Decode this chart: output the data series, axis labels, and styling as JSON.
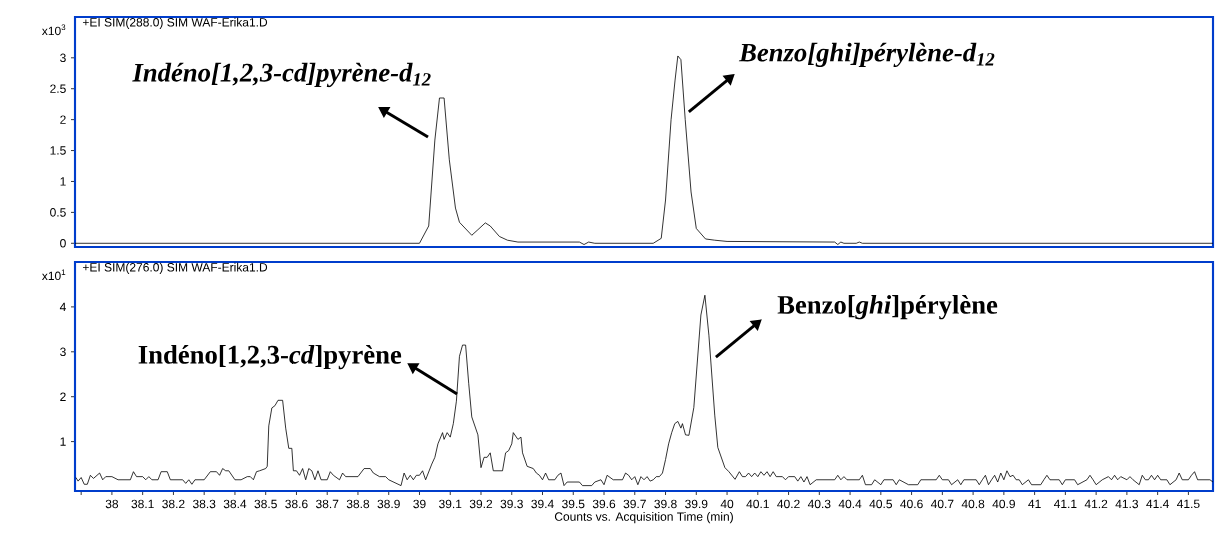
{
  "chart_data": [
    {
      "type": "line",
      "title": "+EI SIM(288.0) SIM WAF-Erika1.D",
      "ylabel": "x10$^{3}$",
      "xlim": [
        37.88,
        41.58
      ],
      "ylim": [
        -0.06,
        3.66
      ],
      "yticks": [
        0,
        0.5,
        1,
        1.5,
        2,
        2.5,
        3
      ],
      "tick_labels": "y",
      "annotations": [
        {
          "text": "Indéno[1,2,3-cd]pyrène-d$_{12}$",
          "x": 39.07,
          "y": 2.35
        },
        {
          "text": "Benzo[ghi]pérylène-d$_{12}$",
          "x": 39.84,
          "y": 3.03
        }
      ],
      "series": [
        {
          "color": "#000000",
          "x": [
            37.88,
            39.0,
            39.03,
            39.05,
            39.065,
            39.08,
            39.097,
            39.117,
            39.13,
            39.17,
            39.19,
            39.214,
            39.23,
            39.26,
            39.286,
            39.32,
            39.52,
            39.535,
            39.55,
            39.57,
            39.76,
            39.786,
            39.8,
            39.818,
            39.831,
            39.84,
            39.85,
            39.864,
            39.883,
            39.9,
            39.93,
            39.96,
            40.0,
            40.35,
            40.36,
            40.37,
            40.38,
            40.42,
            40.43,
            40.44,
            41.58
          ],
          "values": [
            0,
            0,
            0.28,
            1.67,
            2.35,
            2.35,
            1.35,
            0.57,
            0.34,
            0.13,
            0.22,
            0.33,
            0.28,
            0.11,
            0.05,
            0.02,
            0.02,
            -0.02,
            0.02,
            0,
            0,
            0.08,
            0.7,
            2.0,
            2.64,
            3.03,
            2.97,
            2.0,
            0.83,
            0.24,
            0.07,
            0.05,
            0.03,
            0.02,
            -0.02,
            0.02,
            0,
            0,
            0.02,
            0,
            0
          ]
        }
      ]
    },
    {
      "type": "line",
      "title": "+EI SIM(276.0) SIM WAF-Erika1.D",
      "ylabel": "x10$^{1}$",
      "xlabel": "Counts vs. Acquisition Time (min)",
      "xlim": [
        37.88,
        41.58
      ],
      "ylim": [
        -0.1,
        5.0
      ],
      "yticks": [
        1,
        2,
        3,
        4
      ],
      "xticks": [
        {
          "value": 37.9,
          "label": null
        },
        38,
        38.1,
        38.2,
        38.3,
        38.4,
        38.5,
        38.6,
        38.7,
        38.8,
        38.9,
        39,
        39.1,
        39.2,
        39.3,
        39.4,
        39.5,
        39.6,
        39.7,
        39.8,
        39.9,
        40,
        40.1,
        40.2,
        40.3,
        40.4,
        40.5,
        40.6,
        40.7,
        40.8,
        40.9,
        41,
        41.1,
        41.2,
        41.3,
        41.4,
        41.5
      ],
      "annotations": [
        {
          "text": "Indéno[1,2,3-*cd*]pyrène",
          "x": 39.145,
          "y": 3.15
        },
        {
          "text": "Benzo[*ghi*]pérylène",
          "x": 39.928,
          "y": 4.26
        }
      ],
      "series": [
        {
          "color": "#000000",
          "x": [
            37.883,
            37.89,
            37.9,
            37.91,
            37.92,
            37.93,
            37.94,
            37.96,
            37.97,
            37.98,
            38.0,
            38.02,
            38.06,
            38.07,
            38.08,
            38.1,
            38.11,
            38.12,
            38.13,
            38.15,
            38.16,
            38.18,
            38.19,
            38.23,
            38.24,
            38.25,
            38.26,
            38.27,
            38.3,
            38.32,
            38.34,
            38.35,
            38.36,
            38.37,
            38.38,
            38.4,
            38.42,
            38.44,
            38.45,
            38.46,
            38.47,
            38.48,
            38.5,
            38.505,
            38.51,
            38.52,
            38.53,
            38.54,
            38.555,
            38.565,
            38.575,
            38.585,
            38.59,
            38.6,
            38.61,
            38.62,
            38.63,
            38.64,
            38.65,
            38.66,
            38.67,
            38.68,
            38.7,
            38.71,
            38.72,
            38.74,
            38.75,
            38.76,
            38.78,
            38.8,
            38.82,
            38.84,
            38.85,
            38.87,
            38.89,
            38.9,
            38.94,
            38.95,
            38.96,
            38.97,
            38.98,
            38.99,
            39.0,
            39.01,
            39.02,
            39.04,
            39.05,
            39.06,
            39.075,
            39.08,
            39.09,
            39.1,
            39.11,
            39.12,
            39.13,
            39.14,
            39.15,
            39.16,
            39.17,
            39.18,
            39.19,
            39.2,
            39.21,
            39.22,
            39.23,
            39.24,
            39.27,
            39.28,
            39.29,
            39.3,
            39.305,
            39.32,
            39.33,
            39.335,
            39.35,
            39.37,
            39.38,
            39.39,
            39.4,
            39.41,
            39.42,
            39.44,
            39.45,
            39.46,
            39.47,
            39.48,
            39.52,
            39.53,
            39.56,
            39.57,
            39.59,
            39.6,
            39.61,
            39.63,
            39.66,
            39.67,
            39.68,
            39.69,
            39.7,
            39.71,
            39.72,
            39.73,
            39.74,
            39.75,
            39.76,
            39.77,
            39.78,
            39.79,
            39.8,
            39.81,
            39.82,
            39.83,
            39.84,
            39.85,
            39.855,
            39.865,
            39.876,
            39.892,
            39.915,
            39.928,
            39.941,
            39.96,
            39.97,
            39.993,
            40.006,
            40.026,
            40.04,
            40.05,
            40.06,
            40.07,
            40.08,
            40.09,
            40.1,
            40.11,
            40.12,
            40.13,
            40.14,
            40.15,
            40.16,
            40.18,
            40.19,
            40.2,
            40.22,
            40.23,
            40.24,
            40.25,
            40.26,
            40.27,
            40.29,
            40.35,
            40.36,
            40.37,
            40.38,
            40.39,
            40.43,
            40.44,
            40.45,
            40.47,
            40.48,
            40.5,
            40.51,
            40.54,
            40.55,
            40.56,
            40.59,
            40.62,
            40.63,
            40.68,
            40.69,
            40.7,
            40.72,
            40.73,
            40.75,
            40.76,
            40.77,
            40.81,
            40.82,
            40.83,
            40.84,
            40.85,
            40.86,
            40.87,
            40.88,
            40.89,
            40.9,
            40.91,
            40.92,
            40.93,
            40.94,
            40.95,
            40.96,
            40.98,
            40.99,
            41.02,
            41.03,
            41.04,
            41.05,
            41.08,
            41.09,
            41.1,
            41.13,
            41.14,
            41.17,
            41.18,
            41.19,
            41.2,
            41.22,
            41.24,
            41.25,
            41.26,
            41.27,
            41.28,
            41.3,
            41.31,
            41.32,
            41.34,
            41.35,
            41.36,
            41.37,
            41.38,
            41.39,
            41.4,
            41.41,
            41.43,
            41.44,
            41.46,
            41.47,
            41.48,
            41.5,
            41.51,
            41.52,
            41.53,
            41.57,
            41.58
          ],
          "values": [
            0.2,
            0.12,
            0.2,
            0.05,
            0.05,
            0.25,
            0.18,
            0.3,
            0.15,
            0.22,
            0.22,
            0.15,
            0.15,
            0.33,
            0.22,
            0.22,
            0.15,
            0.22,
            0.15,
            0.15,
            0.33,
            0.33,
            0.15,
            0.15,
            0.07,
            0.15,
            0.05,
            0.15,
            0.15,
            0.33,
            0.33,
            0.25,
            0.4,
            0.35,
            0.35,
            0.15,
            0.15,
            0.22,
            0.22,
            0.15,
            0.33,
            0.35,
            0.4,
            0.45,
            1.35,
            1.75,
            1.8,
            1.92,
            1.92,
            1.3,
            0.85,
            0.85,
            0.35,
            0.35,
            0.25,
            0.4,
            0.15,
            0.4,
            0.35,
            0.15,
            0.35,
            0.15,
            0.15,
            0.33,
            0.25,
            0.15,
            0.3,
            0.22,
            0.22,
            0.22,
            0.4,
            0.4,
            0.3,
            0.22,
            0.22,
            0.15,
            0.02,
            0.3,
            0.15,
            0.25,
            0.15,
            0.25,
            0.25,
            0.35,
            0.15,
            0.5,
            0.65,
            0.95,
            1.2,
            1.05,
            1.2,
            1.1,
            1.4,
            1.9,
            2.9,
            3.15,
            3.15,
            2.3,
            1.55,
            1.35,
            1.15,
            0.42,
            0.65,
            0.65,
            0.75,
            0.35,
            0.35,
            0.75,
            0.8,
            0.95,
            1.2,
            1.05,
            1.1,
            0.75,
            0.45,
            0.4,
            0.3,
            0.25,
            0.15,
            0.3,
            0.15,
            0.15,
            0.25,
            0.3,
            0.02,
            0.1,
            0.1,
            0.02,
            0.02,
            0.1,
            0.15,
            0.04,
            0.25,
            0.15,
            0.15,
            0.3,
            0.25,
            0.15,
            0.22,
            0.04,
            0.22,
            0.15,
            0.22,
            0.12,
            0.15,
            0.22,
            0.22,
            0.3,
            0.6,
            0.95,
            1.2,
            1.4,
            1.45,
            1.3,
            1.4,
            1.15,
            1.14,
            1.76,
            3.82,
            4.26,
            3.37,
            1.59,
            0.87,
            0.42,
            0.33,
            0.16,
            0.33,
            0.22,
            0.22,
            0.3,
            0.22,
            0.3,
            0.22,
            0.33,
            0.25,
            0.33,
            0.22,
            0.33,
            0.22,
            0.22,
            0.15,
            0.22,
            0.22,
            0.12,
            0.22,
            0.1,
            0.22,
            0.04,
            0.15,
            0.15,
            0.25,
            0.15,
            0.22,
            0.15,
            0.15,
            0.25,
            0.04,
            0.04,
            0.15,
            0.04,
            0.15,
            0.15,
            0.04,
            0.15,
            0.04,
            0.04,
            0.15,
            0.15,
            0.25,
            0.15,
            0.15,
            0.04,
            0.15,
            0.04,
            0.15,
            0.15,
            0.04,
            0.15,
            0.25,
            0.04,
            0.15,
            0.25,
            0.1,
            0.3,
            0.15,
            0.35,
            0.22,
            0.25,
            0.15,
            0.15,
            0.04,
            0.15,
            0.04,
            0.04,
            0.15,
            0.25,
            0.15,
            0.15,
            0.04,
            0.15,
            0.15,
            0.04,
            0.15,
            0.25,
            0.15,
            0.04,
            0.15,
            0.22,
            0.15,
            0.25,
            0.15,
            0.22,
            0.15,
            0.22,
            0.15,
            0.04,
            0.25,
            0.15,
            0.15,
            0.25,
            0.15,
            0.25,
            0.15,
            0.15,
            0.04,
            0.15,
            0.3,
            0.15,
            0.15,
            0.25,
            0.33,
            0.15,
            0.15,
            0.1
          ]
        }
      ]
    }
  ]
}
